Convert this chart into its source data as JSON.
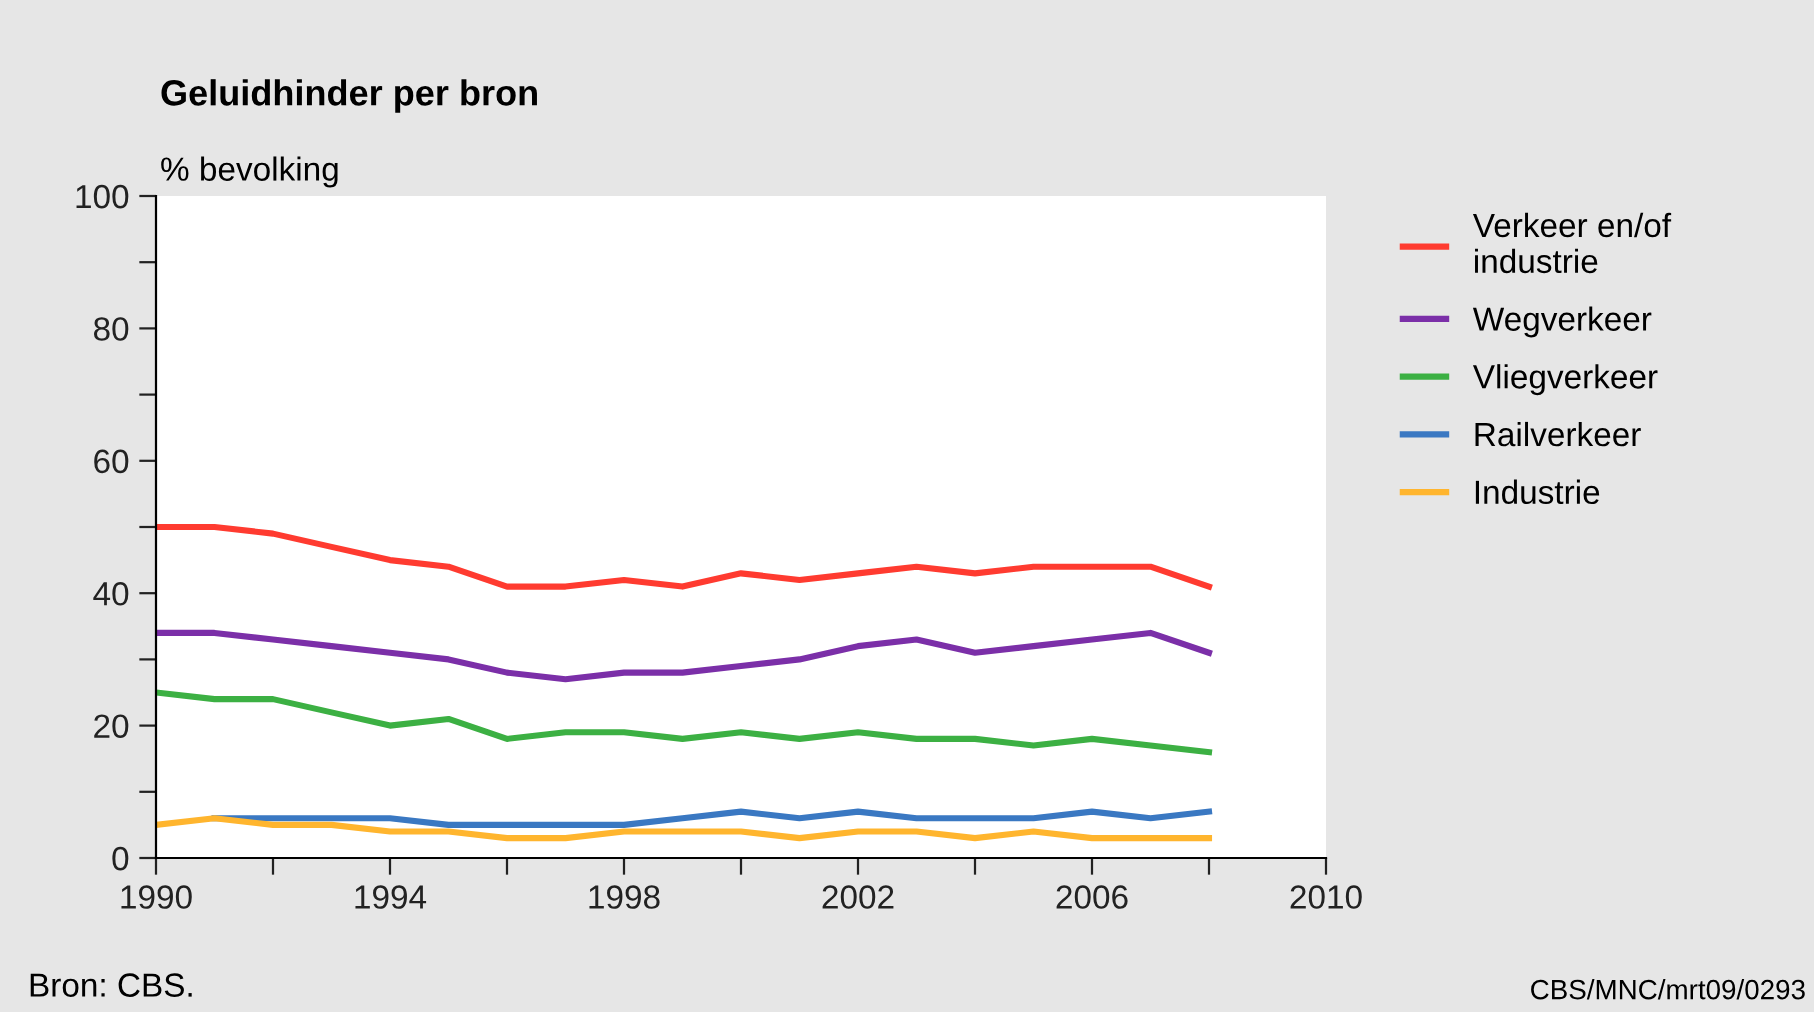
{
  "chart_data": {
    "type": "line",
    "title": "Geluidhinder per bron",
    "ylabel": "% bevolking",
    "x": [
      1990,
      1991,
      1992,
      1993,
      1994,
      1995,
      1996,
      1997,
      1998,
      1999,
      2000,
      2001,
      2002,
      2003,
      2004,
      2005,
      2006,
      2007,
      2008
    ],
    "series": [
      {
        "name": "Verkeer en/of\nindustrie",
        "color": "#ff3b30",
        "values": [
          50,
          50,
          49,
          47,
          45,
          44,
          41,
          41,
          42,
          41,
          43,
          42,
          43,
          44,
          43,
          44,
          44,
          44,
          41
        ]
      },
      {
        "name": "Wegverkeer",
        "color": "#7b2fa8",
        "values": [
          34,
          34,
          33,
          32,
          31,
          30,
          28,
          27,
          28,
          28,
          29,
          30,
          32,
          33,
          31,
          32,
          33,
          34,
          31
        ]
      },
      {
        "name": "Vliegverkeer",
        "color": "#3cb043",
        "values": [
          25,
          24,
          24,
          22,
          20,
          21,
          18,
          19,
          19,
          18,
          19,
          18,
          19,
          18,
          18,
          17,
          18,
          17,
          16
        ]
      },
      {
        "name": "Railverkeer",
        "color": "#3a78c2",
        "values": [
          null,
          6,
          6,
          6,
          6,
          5,
          5,
          5,
          5,
          6,
          7,
          6,
          7,
          6,
          6,
          6,
          7,
          6,
          7
        ]
      },
      {
        "name": "Industrie",
        "color": "#ffb52e",
        "values": [
          5,
          6,
          5,
          5,
          4,
          4,
          3,
          3,
          4,
          4,
          4,
          3,
          4,
          4,
          3,
          4,
          3,
          3,
          3
        ]
      }
    ],
    "xlim": [
      1990,
      2010
    ],
    "xticks": [
      1990,
      {
        "value": 1992,
        "label": null
      },
      1994,
      {
        "value": 1996,
        "label": null
      },
      1998,
      {
        "value": 2000,
        "label": null
      },
      2002,
      {
        "value": 2004,
        "label": null
      },
      2006,
      {
        "value": 2008,
        "label": null
      },
      2010
    ],
    "ylim": [
      0,
      100
    ],
    "yticks": [
      0,
      {
        "value": 10,
        "label": null
      },
      20,
      {
        "value": 30,
        "label": null
      },
      40,
      {
        "value": 50,
        "label": null
      },
      60,
      {
        "value": 70,
        "label": null
      },
      80,
      {
        "value": 90,
        "label": null
      },
      100
    ],
    "grid": false,
    "legend": "right",
    "marker": "none",
    "line_style": "solid",
    "annotations": [
      "Bron: CBS.",
      "CBS/MNC/mrt09/0293"
    ]
  }
}
